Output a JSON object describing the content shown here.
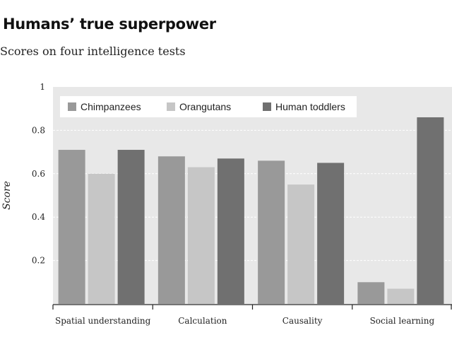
{
  "title": "Humans’ true superpower",
  "subtitle": "Scores on four intelligence tests",
  "colors": {
    "plot_bg": "#e8e8e8",
    "grid": "#ffffff",
    "axis": "#222222"
  },
  "chart_data": {
    "type": "bar",
    "title": "Humans’ true superpower",
    "subtitle": "Scores on four intelligence tests",
    "xlabel": "",
    "ylabel": "Score",
    "ylim": [
      0,
      1
    ],
    "yticks": [
      0.2,
      0.4,
      0.6,
      0.8,
      1
    ],
    "ytick_labels": [
      "0.2",
      "0.4",
      "0.6",
      "0.8",
      "1"
    ],
    "grid": true,
    "legend_position": "top-left",
    "categories": [
      "Spatial understanding",
      "Calculation",
      "Causality",
      "Social learning"
    ],
    "series": [
      {
        "name": "Chimpanzees",
        "color": "#999999",
        "values": [
          0.71,
          0.68,
          0.66,
          0.1
        ]
      },
      {
        "name": "Orangutans",
        "color": "#c6c6c6",
        "values": [
          0.6,
          0.63,
          0.55,
          0.07
        ]
      },
      {
        "name": "Human toddlers",
        "color": "#707070",
        "values": [
          0.71,
          0.67,
          0.65,
          0.86
        ]
      }
    ]
  }
}
